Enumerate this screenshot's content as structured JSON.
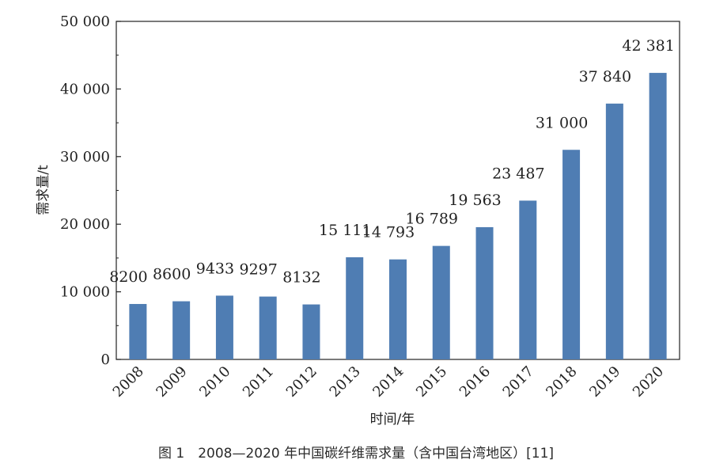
{
  "chart_data": {
    "type": "bar",
    "categories": [
      "2008",
      "2009",
      "2010",
      "2011",
      "2012",
      "2013",
      "2014",
      "2015",
      "2016",
      "2017",
      "2018",
      "2019",
      "2020"
    ],
    "values": [
      8200,
      8600,
      9433,
      9297,
      8132,
      15111,
      14793,
      16789,
      19563,
      23487,
      31000,
      37840,
      42381
    ],
    "data_labels": [
      "8200",
      "8600",
      "9433",
      "9297",
      "8132",
      "15 111",
      "14 793",
      "16 789",
      "19 563",
      "23 487",
      "31 000",
      "37 840",
      "42 381"
    ],
    "yticks": [
      0,
      10000,
      20000,
      30000,
      40000,
      50000
    ],
    "ytick_labels": [
      "0",
      "10 000",
      "20 000",
      "30 000",
      "40 000",
      "50 000"
    ],
    "ylim": [
      0,
      50000
    ],
    "xlabel": "时间/年",
    "ylabel": "需求量/t",
    "bar_color": "#4f7db3",
    "grid": false
  },
  "caption": "图 1　2008—2020 年中国碳纤维需求量（含中国台湾地区）[11]"
}
